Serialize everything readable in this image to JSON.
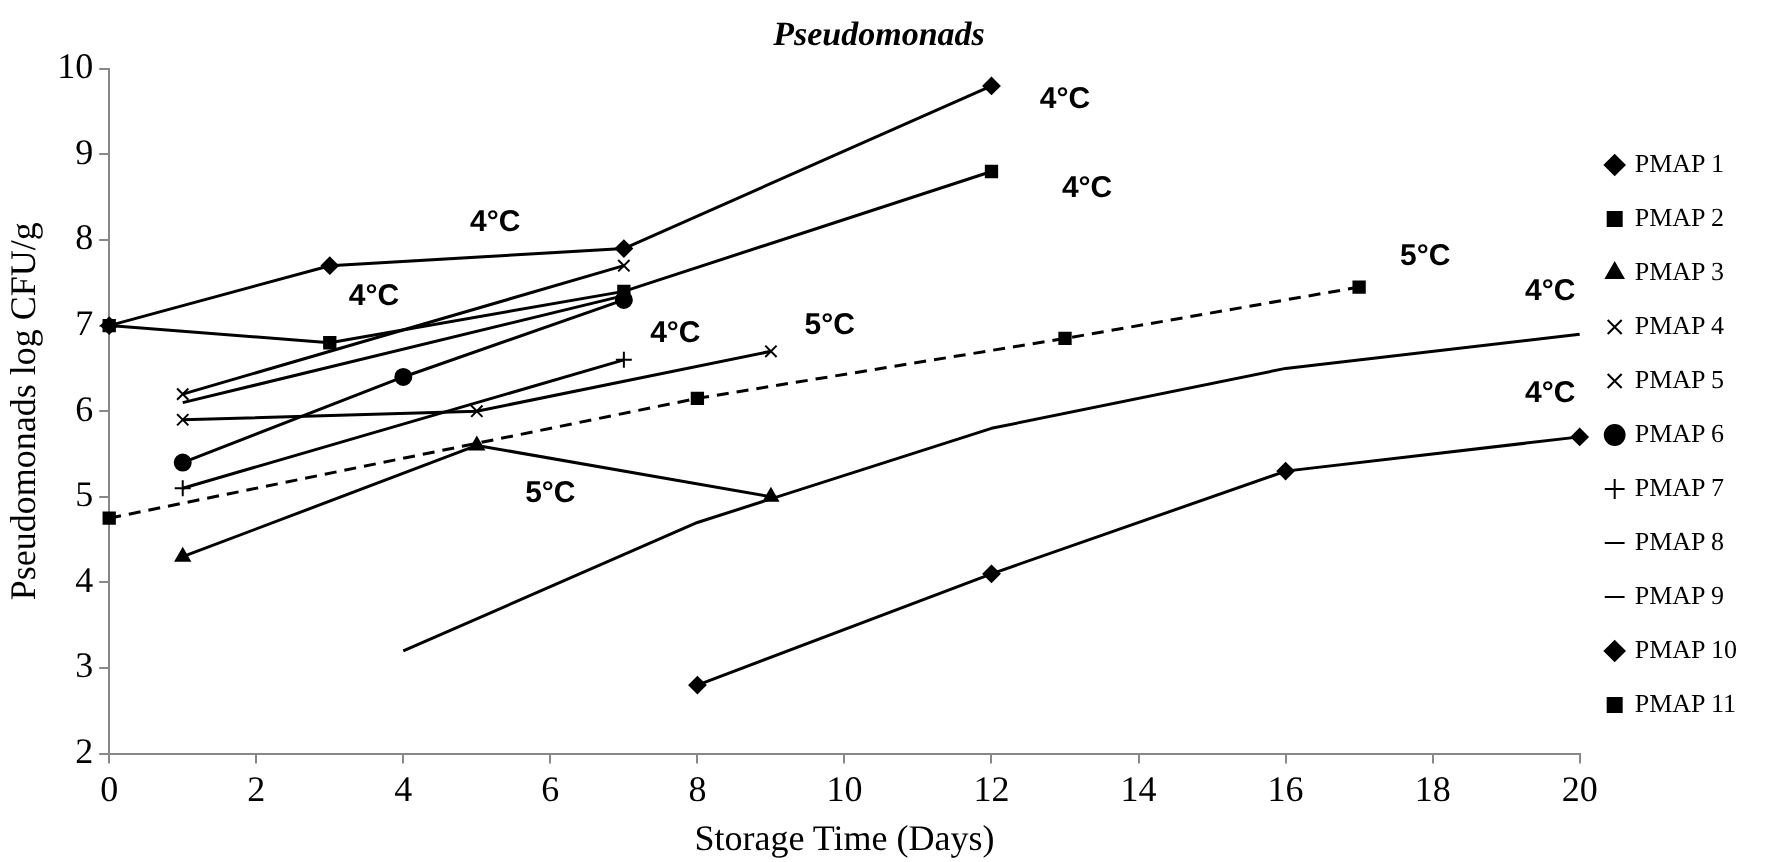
{
  "chart_data": {
    "type": "line",
    "title": "Pseudomonads",
    "xlabel": "Storage Time (Days)",
    "ylabel": "Pseudomonads log CFU/g",
    "xlim": [
      0,
      20
    ],
    "xticks": [
      0,
      2,
      4,
      6,
      8,
      10,
      12,
      14,
      16,
      18,
      20
    ],
    "ylim": [
      2,
      10
    ],
    "yticks": [
      2,
      3,
      4,
      5,
      6,
      7,
      8,
      9,
      10
    ],
    "grid": false,
    "legend": "right",
    "series": [
      {
        "name": "PMAP 1",
        "color": "#000000",
        "marker": "diamond",
        "x": [
          0,
          3,
          7,
          12
        ],
        "values": [
          7.0,
          7.7,
          7.9,
          9.8
        ]
      },
      {
        "name": "PMAP 2",
        "color": "#000000",
        "marker": "square",
        "x": [
          0,
          3,
          7,
          12
        ],
        "values": [
          7.0,
          6.8,
          7.4,
          8.8
        ]
      },
      {
        "name": "PMAP 3",
        "color": "#000000",
        "marker": "triangle",
        "x": [
          1,
          5,
          9
        ],
        "values": [
          4.3,
          5.6,
          5.0
        ]
      },
      {
        "name": "PMAP 4",
        "color": "#000000",
        "marker": "cross",
        "x": [
          1,
          5,
          9
        ],
        "values": [
          5.9,
          6.0,
          6.7
        ]
      },
      {
        "name": "PMAP 5",
        "color": "#000000",
        "marker": "cross",
        "x": [
          1,
          7
        ],
        "values": [
          6.2,
          7.7
        ]
      },
      {
        "name": "PMAP 6",
        "color": "#000000",
        "marker": "circle",
        "x": [
          1,
          4,
          7
        ],
        "values": [
          5.4,
          6.4,
          7.3
        ]
      },
      {
        "name": "PMAP 7",
        "color": "#000000",
        "marker": "plus",
        "x": [
          1,
          7
        ],
        "values": [
          5.1,
          6.6
        ]
      },
      {
        "name": "PMAP 8",
        "color": "#000000",
        "marker": "none",
        "x": [
          1,
          7
        ],
        "values": [
          6.1,
          7.35
        ]
      },
      {
        "name": "PMAP 9",
        "color": "#000000",
        "marker": "none",
        "x": [
          4,
          8,
          12,
          16,
          20
        ],
        "values": [
          3.2,
          4.7,
          5.8,
          6.5,
          6.9
        ]
      },
      {
        "name": "PMAP 10",
        "color": "#000000",
        "marker": "diamond",
        "x": [
          8,
          12,
          16,
          20
        ],
        "values": [
          2.8,
          4.1,
          5.3,
          5.7
        ]
      },
      {
        "name": "PMAP 11",
        "color": "#000000",
        "marker": "square",
        "line_style": "dashed",
        "x": [
          0,
          8,
          13,
          17
        ],
        "values": [
          4.75,
          6.15,
          6.85,
          7.45
        ]
      }
    ],
    "annotations": [
      "4°C",
      "4°C",
      "4°C",
      "4°C",
      "4°C",
      "5°C",
      "5°C",
      "5°C",
      "4°C",
      "4°C"
    ]
  }
}
